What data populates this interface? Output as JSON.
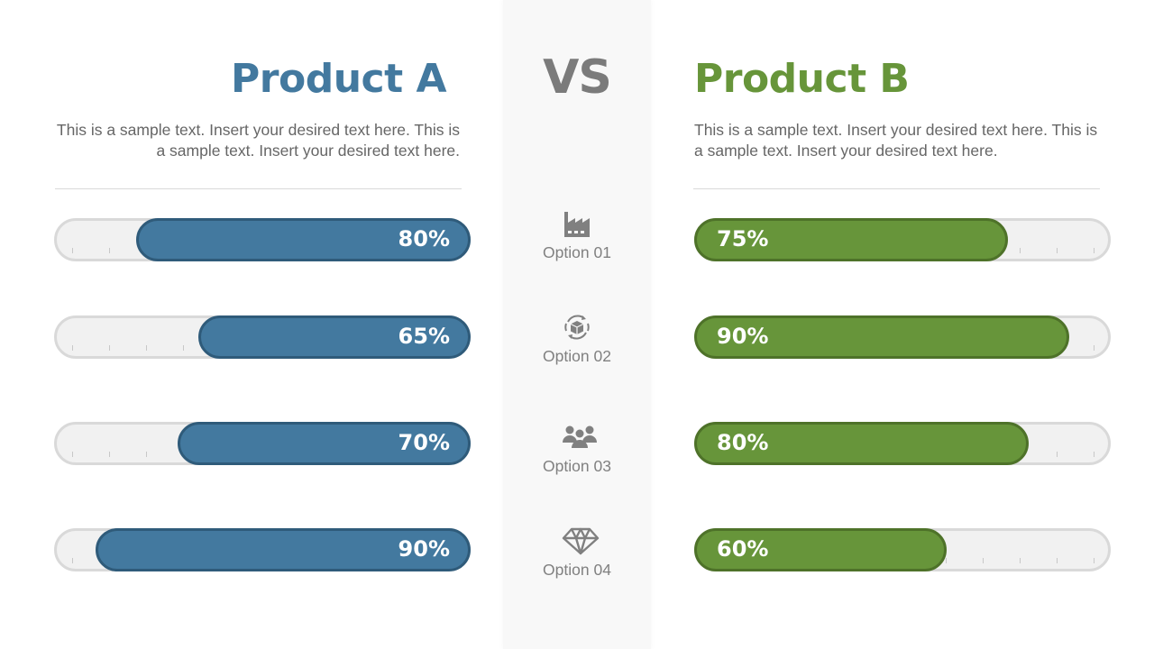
{
  "center": {
    "vs_label": "VS"
  },
  "product_a": {
    "title": "Product A",
    "description": "This is a sample text. Insert your desired text here. This is a sample text. Insert your desired text here.",
    "color": "#43799f",
    "border_color": "#2f5b7a"
  },
  "product_b": {
    "title": "Product B",
    "description": "This is a sample text. Insert your desired text here. This is a sample text. Insert your desired text here.",
    "color": "#67953a",
    "border_color": "#4e7229"
  },
  "options": [
    {
      "label": "Option 01",
      "icon": "factory-icon",
      "a_value": 80,
      "a_label": "80%",
      "b_value": 75,
      "b_label": "75%"
    },
    {
      "label": "Option 02",
      "icon": "package-cycle-icon",
      "a_value": 65,
      "a_label": "65%",
      "b_value": 90,
      "b_label": "90%"
    },
    {
      "label": "Option 03",
      "icon": "team-icon",
      "a_value": 70,
      "a_label": "70%",
      "b_value": 80,
      "b_label": "80%"
    },
    {
      "label": "Option 04",
      "icon": "diamond-icon",
      "a_value": 90,
      "a_label": "90%",
      "b_value": 60,
      "b_label": "60%"
    }
  ],
  "chart_data": {
    "type": "bar",
    "title": "Product A VS Product B",
    "categories": [
      "Option 01",
      "Option 02",
      "Option 03",
      "Option 04"
    ],
    "series": [
      {
        "name": "Product A",
        "values": [
          80,
          65,
          70,
          90
        ],
        "color": "#43799f"
      },
      {
        "name": "Product B",
        "values": [
          75,
          90,
          80,
          60
        ],
        "color": "#67953a"
      }
    ],
    "xlabel": "",
    "ylabel": "",
    "ylim": [
      0,
      100
    ],
    "orientation": "horizontal, mirrored (A grows leftward from center, B grows rightward from center)",
    "grid": false,
    "legend": "titles above each column"
  }
}
